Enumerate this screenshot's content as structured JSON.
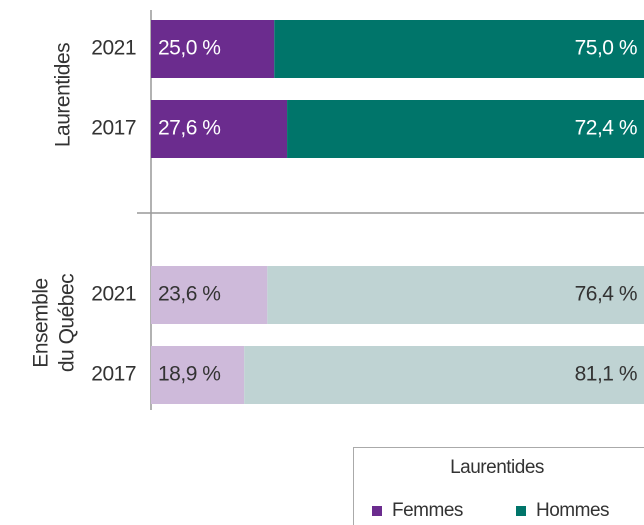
{
  "chart_data": {
    "type": "stacked_bar",
    "orientation": "horizontal",
    "xlim": [
      0,
      100
    ],
    "groups": [
      {
        "label": [
          "Laurentides"
        ],
        "categories": [
          "2021",
          "2017"
        ],
        "series": [
          {
            "name": "Femmes",
            "color": "#6b2c8e",
            "label_color": "#ffffff",
            "values": [
              25.0,
              27.6
            ],
            "value_labels": [
              "25,0 %",
              "27,6 %"
            ]
          },
          {
            "name": "Hommes",
            "color": "#00756a",
            "label_color": "#ffffff",
            "values": [
              75.0,
              72.4
            ],
            "value_labels": [
              "75,0 %",
              "72,4 %"
            ]
          }
        ]
      },
      {
        "label": [
          "Ensemble",
          "du Québec"
        ],
        "categories": [
          "2021",
          "2017"
        ],
        "series": [
          {
            "name": "Femmes",
            "color": "#cebada",
            "label_color": "#333333",
            "values": [
              23.6,
              18.9
            ],
            "value_labels": [
              "23,6 %",
              "18,9 %"
            ]
          },
          {
            "name": "Hommes",
            "color": "#bfd3d3",
            "label_color": "#333333",
            "values": [
              76.4,
              81.1
            ],
            "value_labels": [
              "76,4 %",
              "81,1 %"
            ]
          }
        ]
      }
    ],
    "legend": {
      "title": "Laurentides",
      "group": 0
    }
  }
}
